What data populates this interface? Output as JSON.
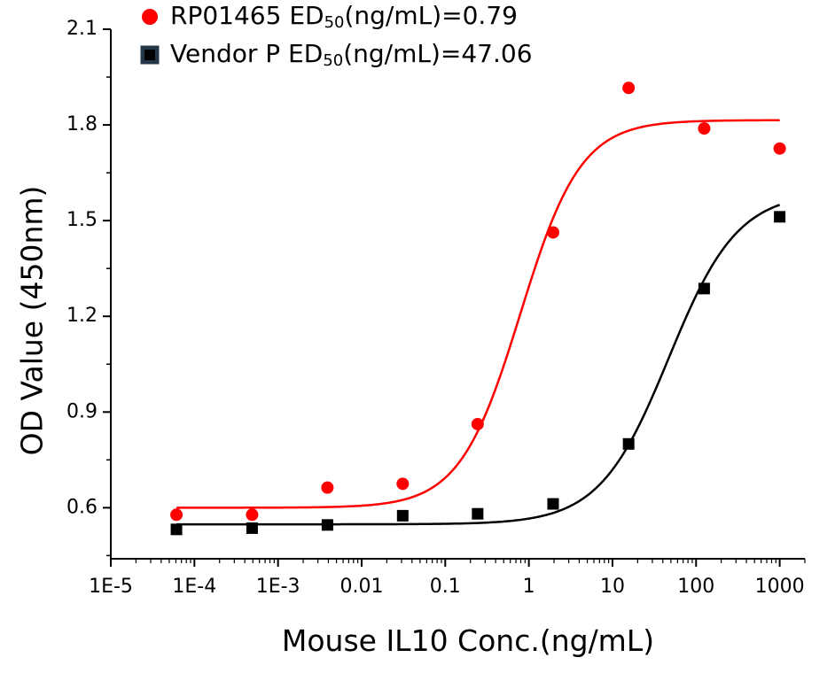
{
  "chart_data": {
    "type": "scatter",
    "xlabel": "Mouse IL10 Conc.(ng/mL)",
    "ylabel": "OD Value (450nm)",
    "x_scale": "log",
    "xlim": [
      1e-05,
      2000
    ],
    "ylim": [
      0.44,
      2.1
    ],
    "x_ticks": [
      1e-05,
      0.0001,
      0.001,
      0.01,
      0.1,
      1,
      10,
      100,
      1000
    ],
    "x_tick_labels": [
      "1E-5",
      "1E-4",
      "1E-3",
      "0.01",
      "0.1",
      "1",
      "10",
      "100",
      "1000"
    ],
    "y_ticks": [
      0.6,
      0.9,
      1.2,
      1.5,
      1.8,
      2.1
    ],
    "y_tick_labels": [
      "0.6",
      "0.9",
      "1.2",
      "1.5",
      "1.8",
      "2.1"
    ],
    "legend_position": "top-left",
    "series": [
      {
        "name": "RP01465",
        "legend_prefix": "RP01465 ED",
        "legend_sub": "50",
        "legend_suffix": "(ng/mL)=0.79",
        "marker": "circle",
        "color": "#ff0000",
        "x": [
          6.1e-05,
          0.00049,
          0.0039,
          0.031,
          0.244,
          1.95,
          15.6,
          125,
          1000
        ],
        "y": [
          0.578,
          0.578,
          0.663,
          0.675,
          0.862,
          1.463,
          1.916,
          1.789,
          1.726
        ],
        "fit": {
          "bottom": 0.6,
          "top": 1.815,
          "ec50": 0.79,
          "hill": 1.2
        }
      },
      {
        "name": "Vendor P",
        "legend_prefix": "Vendor P ED",
        "legend_sub": "50",
        "legend_suffix": "(ng/mL)=47.06",
        "marker": "square",
        "color": "#000000",
        "x": [
          6.1e-05,
          0.00049,
          0.0039,
          0.031,
          0.244,
          1.95,
          15.6,
          125,
          1000
        ],
        "y": [
          0.532,
          0.536,
          0.546,
          0.575,
          0.581,
          0.612,
          0.8,
          1.287,
          1.512
        ],
        "fit": {
          "bottom": 0.548,
          "top": 1.59,
          "ec50": 47.06,
          "hill": 1.05
        }
      }
    ]
  }
}
